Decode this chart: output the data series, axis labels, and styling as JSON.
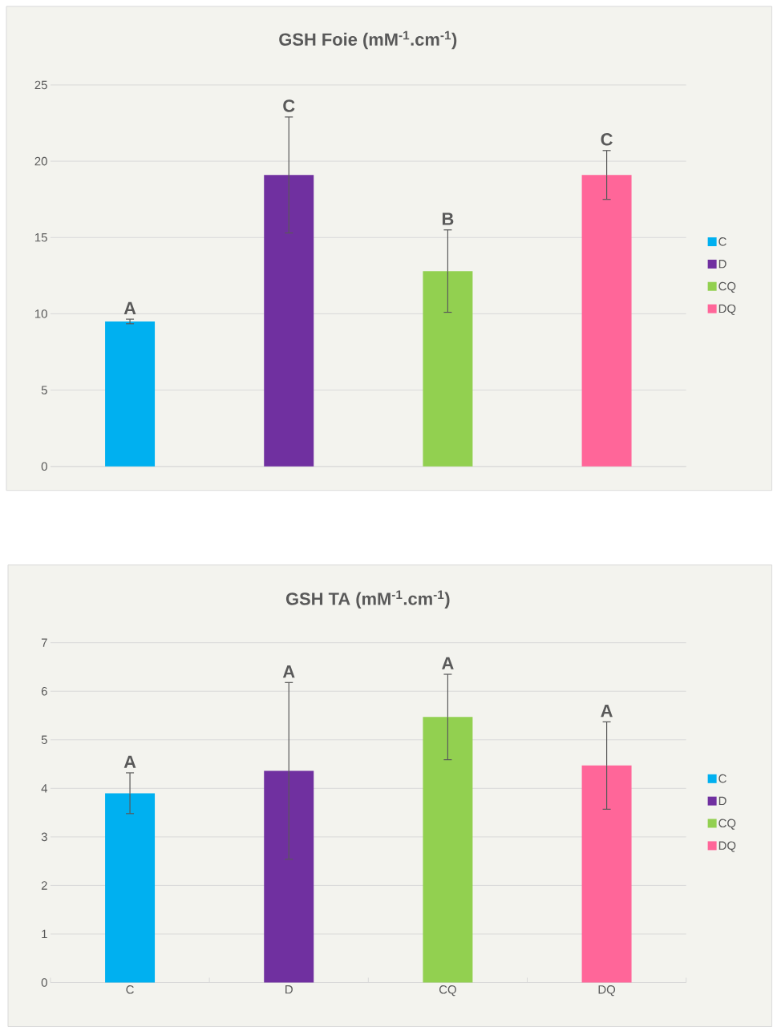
{
  "chart_data": [
    {
      "type": "bar",
      "title": "GSH Foie (mM$^{-1}$.cm$^{-1}$)",
      "categories": [
        null,
        null,
        null,
        null
      ],
      "ylim": [
        0,
        25
      ],
      "yticks": [
        0,
        5,
        10,
        15,
        20,
        25
      ],
      "grid": "y",
      "legend": "right",
      "tick_labels": "y",
      "series": [
        {
          "name": "C",
          "color": "#00b0f0",
          "values": [
            9.5,
            null,
            null,
            null
          ],
          "errors": [
            0.15,
            null,
            null,
            null
          ]
        },
        {
          "name": "D",
          "color": "#7030a0",
          "values": [
            null,
            19.1,
            null,
            null
          ],
          "errors": [
            null,
            3.8,
            null,
            null
          ]
        },
        {
          "name": "CQ",
          "color": "#92d050",
          "values": [
            null,
            null,
            12.8,
            null
          ],
          "errors": [
            null,
            null,
            2.7,
            null
          ]
        },
        {
          "name": "DQ",
          "color": "#ff6699",
          "values": [
            null,
            null,
            null,
            19.1
          ],
          "errors": [
            null,
            null,
            null,
            1.6
          ]
        }
      ],
      "annotations": [
        {
          "text": "A",
          "y": 9.65
        },
        {
          "text": "C",
          "y": 22.9
        },
        {
          "text": "B",
          "y": 15.5
        },
        {
          "text": "C",
          "y": 20.7
        }
      ]
    },
    {
      "type": "bar",
      "title": "GSH TA (mM$^{-1}$.cm$^{-1}$)",
      "categories": [
        "C",
        "D",
        "CQ",
        "DQ"
      ],
      "ylim": [
        0,
        7
      ],
      "yticks": [
        0,
        1,
        2,
        3,
        4,
        5,
        6,
        7
      ],
      "grid": "y",
      "legend": "right",
      "series": [
        {
          "name": "C",
          "color": "#00b0f0",
          "values": [
            3.9,
            null,
            null,
            null
          ],
          "errors": [
            0.42,
            null,
            null,
            null
          ]
        },
        {
          "name": "D",
          "color": "#7030a0",
          "values": [
            null,
            4.36,
            null,
            null
          ],
          "errors": [
            null,
            1.82,
            null,
            null
          ]
        },
        {
          "name": "CQ",
          "color": "#92d050",
          "values": [
            null,
            null,
            5.47,
            null
          ],
          "errors": [
            null,
            null,
            0.88,
            null
          ]
        },
        {
          "name": "DQ",
          "color": "#ff6699",
          "values": [
            null,
            null,
            null,
            4.47
          ],
          "errors": [
            null,
            null,
            null,
            0.9
          ]
        }
      ],
      "annotations": [
        {
          "text": "A",
          "x": "C",
          "y": 4.32
        },
        {
          "text": "A",
          "x": "D",
          "y": 6.18
        },
        {
          "text": "A",
          "x": "CQ",
          "y": 6.35
        },
        {
          "text": "A",
          "x": "DQ",
          "y": 5.37
        }
      ]
    }
  ]
}
